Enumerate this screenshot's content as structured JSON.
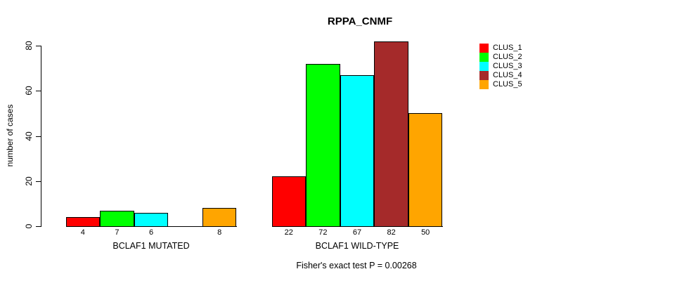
{
  "chart_data": {
    "type": "bar",
    "title": "RPPA_CNMF",
    "ylabel": "number of cases",
    "ylim": [
      0,
      80
    ],
    "yticks": [
      0,
      20,
      40,
      60,
      80
    ],
    "categories": [
      "BCLAF1 MUTATED",
      "BCLAF1 WILD-TYPE"
    ],
    "series": [
      {
        "name": "CLUS_1",
        "color": "#ff0000",
        "values": [
          4,
          22
        ]
      },
      {
        "name": "CLUS_2",
        "color": "#00ff00",
        "values": [
          7,
          72
        ]
      },
      {
        "name": "CLUS_3",
        "color": "#00ffff",
        "values": [
          6,
          67
        ]
      },
      {
        "name": "CLUS_4",
        "color": "#a52a2a",
        "values": [
          0,
          82
        ]
      },
      {
        "name": "CLUS_5",
        "color": "#ffa500",
        "values": [
          8,
          50
        ]
      }
    ],
    "bar_value_labels": [
      [
        "4",
        "7",
        "6",
        "",
        "8"
      ],
      [
        "22",
        "72",
        "67",
        "82",
        "50"
      ]
    ],
    "annotation": "Fisher's exact test P = 0.00268",
    "legend_position": "right",
    "grid": false
  }
}
